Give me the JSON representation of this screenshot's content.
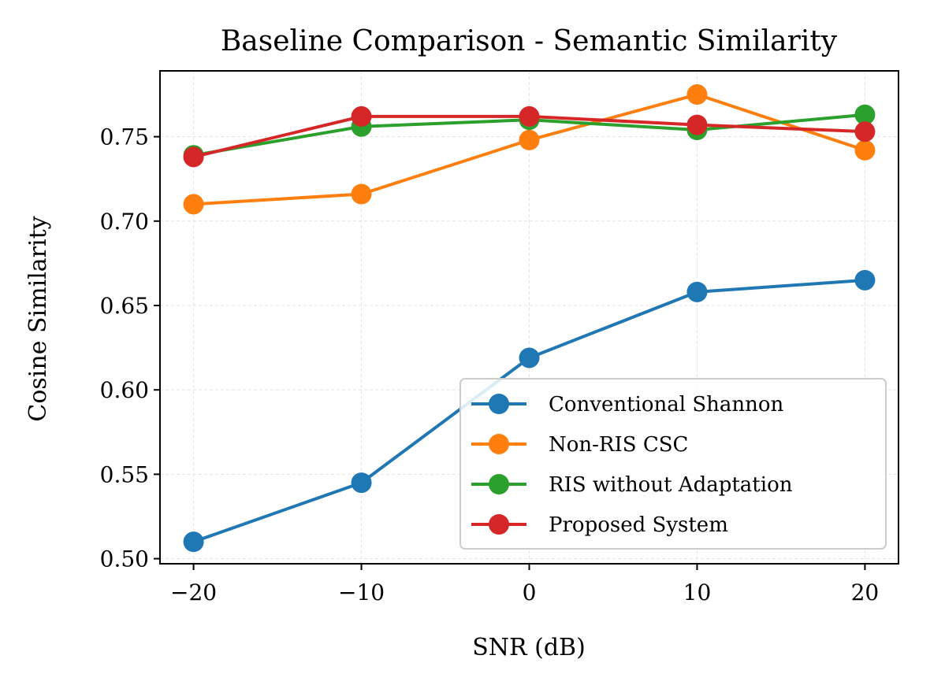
{
  "chart_data": {
    "type": "line",
    "title": "Baseline Comparison - Semantic Similarity",
    "xlabel": "SNR (dB)",
    "ylabel": "Cosine Similarity",
    "x": [
      -20,
      -10,
      0,
      10,
      20
    ],
    "xticks": [
      -20,
      -10,
      0,
      10,
      20
    ],
    "xtick_labels": [
      "−20",
      "−10",
      "0",
      "10",
      "20"
    ],
    "yticks": [
      0.5,
      0.55,
      0.6,
      0.65,
      0.7,
      0.75
    ],
    "ytick_labels": [
      "0.50",
      "0.55",
      "0.60",
      "0.65",
      "0.70",
      "0.75"
    ],
    "xlim": [
      -22,
      22
    ],
    "ylim": [
      0.497,
      0.789
    ],
    "grid": true,
    "legend_position": "lower-right",
    "series": [
      {
        "name": "Conventional Shannon",
        "color": "#1f77b4",
        "values": [
          0.51,
          0.545,
          0.619,
          0.658,
          0.665
        ]
      },
      {
        "name": "Non-RIS CSC",
        "color": "#ff7f0e",
        "values": [
          0.71,
          0.716,
          0.748,
          0.775,
          0.742
        ]
      },
      {
        "name": "RIS without Adaptation",
        "color": "#2ca02c",
        "values": [
          0.739,
          0.756,
          0.76,
          0.754,
          0.763
        ]
      },
      {
        "name": "Proposed System",
        "color": "#d62728",
        "values": [
          0.738,
          0.762,
          0.762,
          0.757,
          0.753
        ]
      }
    ]
  }
}
